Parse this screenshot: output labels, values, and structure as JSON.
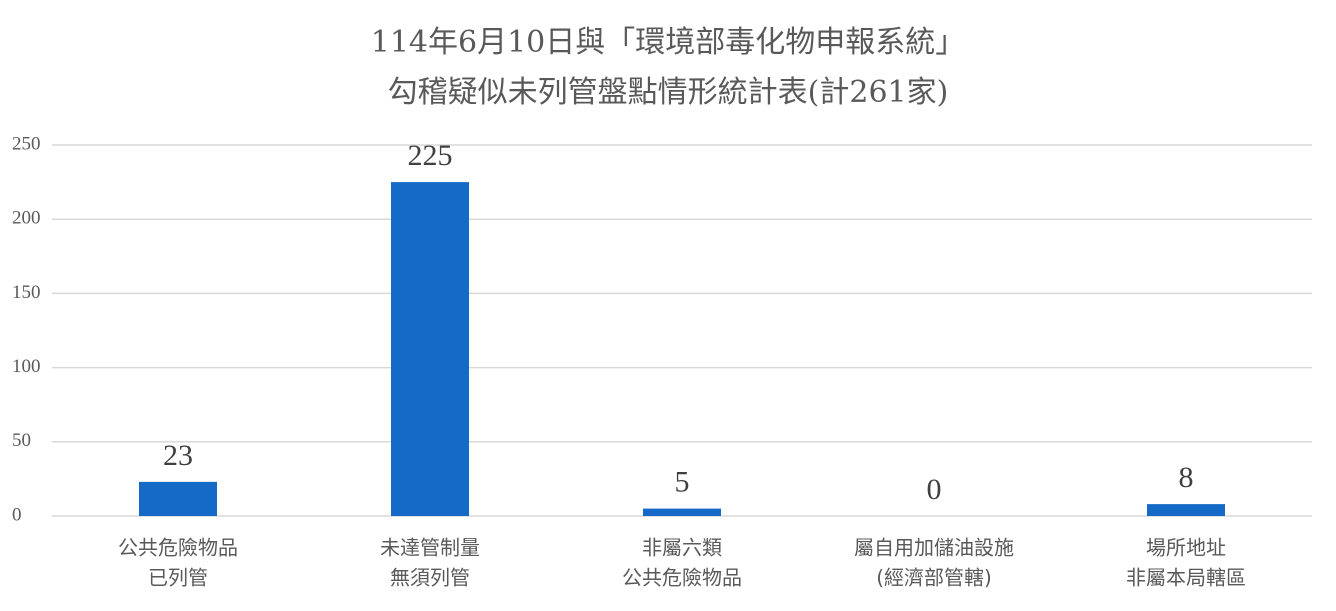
{
  "chart_data": {
    "type": "bar",
    "title": [
      "114年6月10日與「環境部毒化物申報系統」",
      "勾稽疑似未列管盤點情形統計表(計261家)"
    ],
    "categories": [
      [
        "公共危險物品",
        "已列管"
      ],
      [
        "未達管制量",
        "無須列管"
      ],
      [
        "非屬六類",
        "公共危險物品"
      ],
      [
        "屬自用加儲油設施",
        "(經濟部管轄)"
      ],
      [
        "場所地址",
        "非屬本局轄區"
      ]
    ],
    "values": [
      23,
      225,
      5,
      0,
      8
    ],
    "color": "#1569c7",
    "ylim": [
      0,
      250
    ],
    "yticks": [
      0,
      50,
      100,
      150,
      200,
      250
    ],
    "grid": true
  }
}
